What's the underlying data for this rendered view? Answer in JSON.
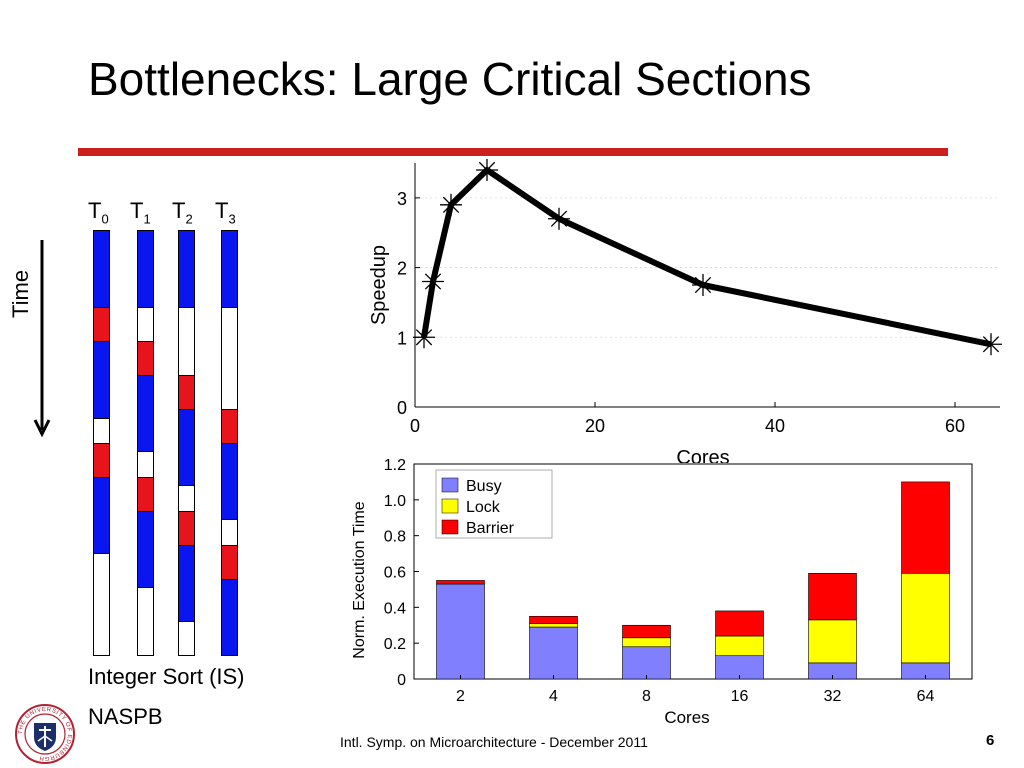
{
  "slide": {
    "title": "Bottlenecks: Large Critical Sections",
    "footer": "Intl. Symp. on Microarchitecture - December 2011",
    "page_number": "6",
    "logo_text": "THE UNIVERSITY OF EDINBURGH"
  },
  "timeline": {
    "time_label": "Time",
    "caption_line1": "Integer Sort (IS)",
    "caption_line2": "NASPB",
    "colors": {
      "busy": "#0a16f0",
      "lock": "#e8141c",
      "idle": "#ffffff"
    },
    "threads": [
      {
        "label": "T",
        "sub": "0",
        "segments": [
          [
            "busy",
            0.18
          ],
          [
            "lock",
            0.08
          ],
          [
            "busy",
            0.18
          ],
          [
            "idle",
            0.06
          ],
          [
            "lock",
            0.08
          ],
          [
            "busy",
            0.18
          ],
          [
            "idle",
            0.24
          ]
        ]
      },
      {
        "label": "T",
        "sub": "1",
        "segments": [
          [
            "busy",
            0.18
          ],
          [
            "idle",
            0.08
          ],
          [
            "lock",
            0.08
          ],
          [
            "busy",
            0.18
          ],
          [
            "idle",
            0.06
          ],
          [
            "lock",
            0.08
          ],
          [
            "busy",
            0.18
          ],
          [
            "idle",
            0.16
          ]
        ]
      },
      {
        "label": "T",
        "sub": "2",
        "segments": [
          [
            "busy",
            0.18
          ],
          [
            "idle",
            0.16
          ],
          [
            "lock",
            0.08
          ],
          [
            "busy",
            0.18
          ],
          [
            "idle",
            0.06
          ],
          [
            "lock",
            0.08
          ],
          [
            "busy",
            0.18
          ],
          [
            "idle",
            0.08
          ]
        ]
      },
      {
        "label": "T",
        "sub": "3",
        "segments": [
          [
            "busy",
            0.18
          ],
          [
            "idle",
            0.24
          ],
          [
            "lock",
            0.08
          ],
          [
            "busy",
            0.18
          ],
          [
            "idle",
            0.06
          ],
          [
            "lock",
            0.08
          ],
          [
            "busy",
            0.18
          ]
        ]
      }
    ]
  },
  "chart_data": [
    {
      "type": "line",
      "title": "",
      "xlabel": "Cores",
      "ylabel": "Speedup",
      "x": [
        1,
        2,
        4,
        8,
        16,
        32,
        64
      ],
      "series": [
        {
          "values": [
            1.0,
            1.8,
            2.9,
            3.4,
            2.7,
            1.75,
            0.9
          ]
        }
      ],
      "xlim": [
        0,
        65
      ],
      "ylim": [
        0,
        3.5
      ],
      "xticks": [
        "0",
        "20",
        "40",
        "60"
      ],
      "xtick_values": [
        0,
        20,
        40,
        60
      ],
      "yticks": [
        "0",
        "1",
        "2",
        "3"
      ],
      "ytick_values": [
        0,
        1,
        2,
        3
      ],
      "marker": "asterisk",
      "line_color": "#000000"
    },
    {
      "type": "bar",
      "stacked": true,
      "title": "",
      "xlabel": "Cores",
      "ylabel": "Norm. Execution Time",
      "categories": [
        "2",
        "4",
        "8",
        "16",
        "32",
        "64"
      ],
      "series": [
        {
          "name": "Busy",
          "color": "#8080ff",
          "values": [
            0.53,
            0.29,
            0.18,
            0.13,
            0.09,
            0.09
          ]
        },
        {
          "name": "Lock",
          "color": "#ffff00",
          "values": [
            0.0,
            0.02,
            0.05,
            0.11,
            0.24,
            0.5
          ]
        },
        {
          "name": "Barrier",
          "color": "#ff0000",
          "values": [
            0.02,
            0.04,
            0.07,
            0.14,
            0.26,
            0.51
          ]
        }
      ],
      "ylim": [
        0,
        1.2
      ],
      "yticks": [
        "0",
        "0.2",
        "0.4",
        "0.6",
        "0.8",
        "1.0",
        "1.2"
      ],
      "ytick_values": [
        0,
        0.2,
        0.4,
        0.6,
        0.8,
        1.0,
        1.2
      ],
      "legend_position": "top-left"
    }
  ]
}
